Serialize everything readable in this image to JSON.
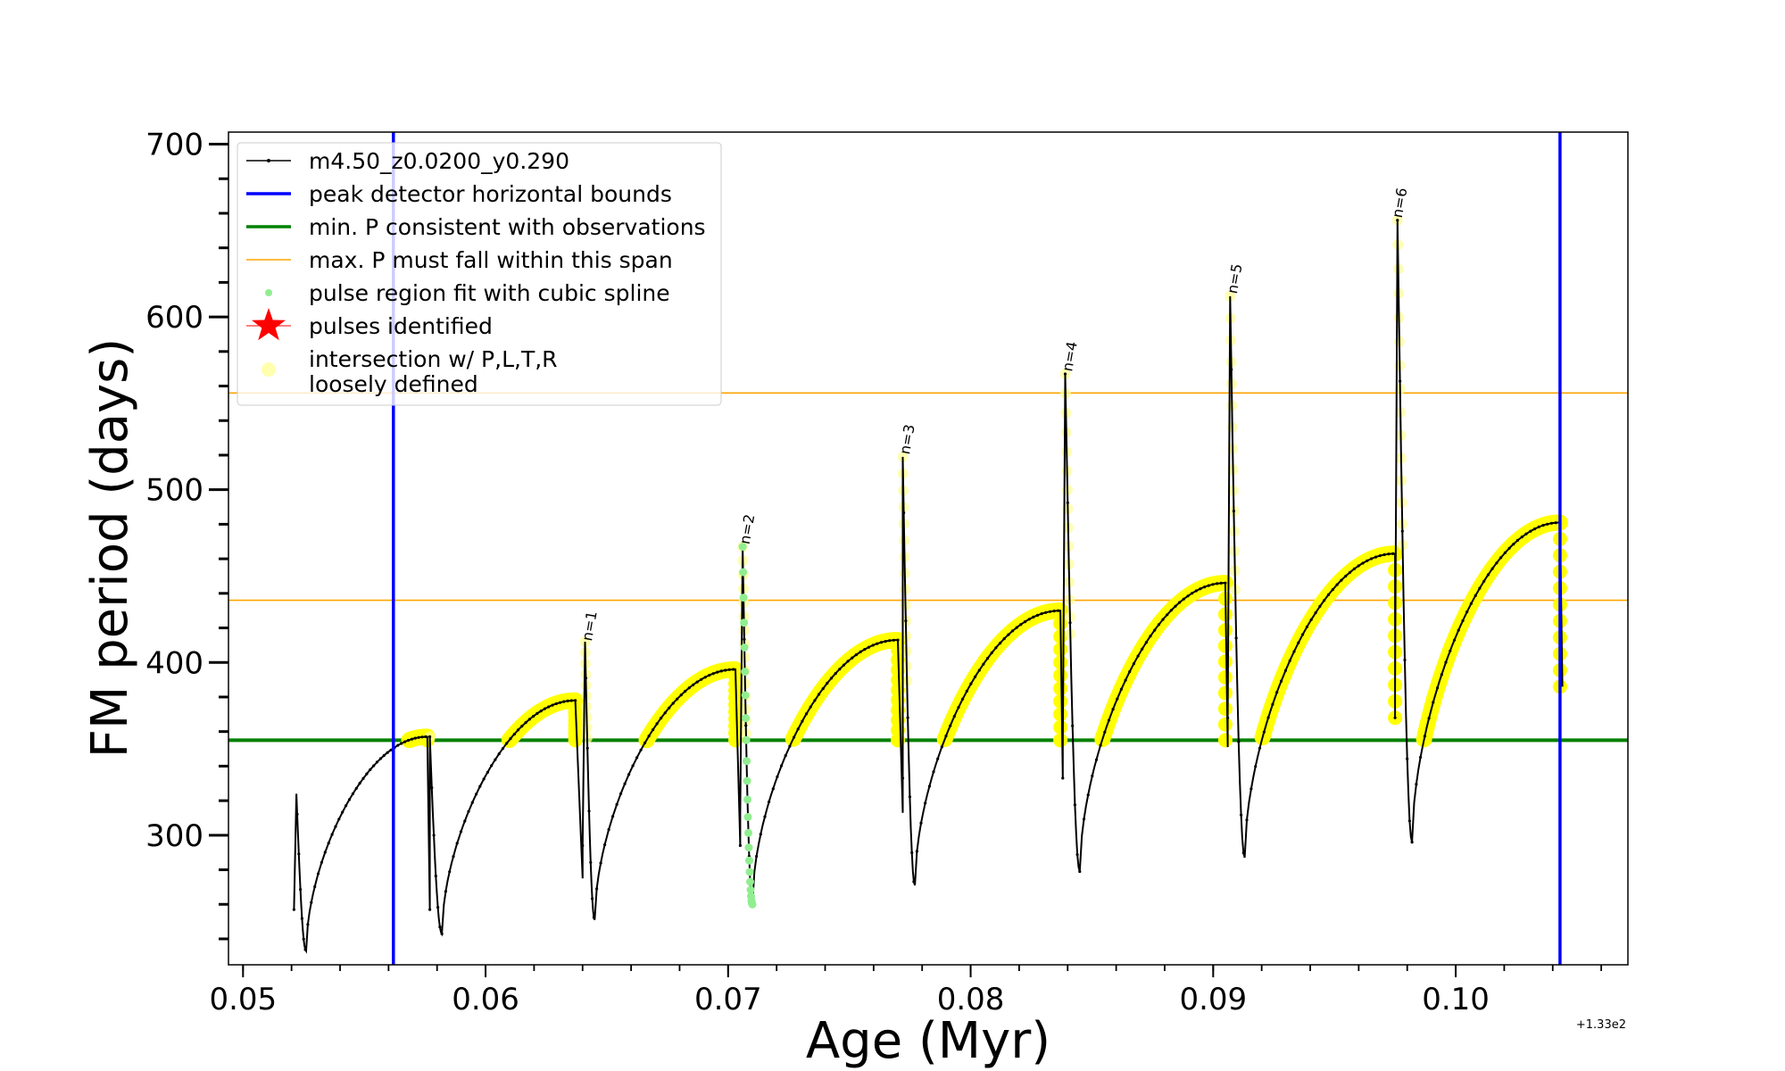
{
  "chart_data": {
    "type": "line",
    "xlabel": "Age (Myr)",
    "ylabel": "FM period (days)",
    "x_offset_label": "+1.33e2",
    "xlim": [
      0.0494,
      0.1071
    ],
    "ylim": [
      225,
      707
    ],
    "x_ticks": [
      0.05,
      0.06,
      0.07,
      0.08,
      0.09,
      0.1
    ],
    "x_tick_labels": [
      "0.05",
      "0.06",
      "0.07",
      "0.08",
      "0.09",
      "0.10"
    ],
    "x_minor_step": 0.002,
    "y_ticks": [
      300,
      400,
      500,
      600,
      700
    ],
    "y_tick_labels": [
      "300",
      "400",
      "500",
      "600",
      "700"
    ],
    "y_minor_step": 20,
    "colors": {
      "track": "#000000",
      "bounds": "#0000ff",
      "min_period": "#008000",
      "max_span": "#ffa500",
      "spline": "#90ee90",
      "pulses": "#ff0000",
      "intersection": "#ffff00"
    },
    "legend": {
      "placement": "upper-left",
      "entries": [
        {
          "label": "m4.50_z0.0200_y0.290",
          "style": "line-marker",
          "color": "#000000"
        },
        {
          "label": "peak detector horizontal bounds",
          "style": "line",
          "color": "#0000ff"
        },
        {
          "label": "min. P consistent with observations",
          "style": "line",
          "color": "#008000"
        },
        {
          "label": "max. P must fall within this span",
          "style": "thin-line",
          "color": "#ffa500"
        },
        {
          "label": "pulse region fit with cubic spline",
          "style": "dot",
          "color": "#90ee90"
        },
        {
          "label": "pulses identified",
          "style": "star",
          "color": "#ff0000"
        },
        {
          "label": "intersection w/ P,L,T,R",
          "label2": "loosely defined",
          "style": "circle",
          "color": "#ffff99"
        }
      ]
    },
    "vertical_bounds": [
      0.0562,
      0.1043
    ],
    "min_period": 355,
    "max_period_span": [
      436,
      556
    ],
    "track_segments": [
      {
        "t0": 0.0521,
        "t_peak": 0.0522,
        "peak": 324,
        "t_dip": 0.0526,
        "dip": 233,
        "t_end": 0.0576,
        "end": 357,
        "t_drop": 0.0577,
        "drop": 257
      },
      {
        "t0": 0.0577,
        "t_peak": 0.0577,
        "peak": 357,
        "t_dip": 0.0582,
        "dip": 243,
        "t_end": 0.0637,
        "end": 378,
        "t_drop": 0.064,
        "drop": 275
      },
      {
        "t0": 0.064,
        "t_peak": 0.0641,
        "peak": 412,
        "t_dip": 0.0645,
        "dip": 251,
        "t_end": 0.0703,
        "end": 396,
        "t_drop": 0.0705,
        "drop": 294
      },
      {
        "t0": 0.0705,
        "t_peak": 0.0706,
        "peak": 467,
        "t_dip": 0.071,
        "dip": 260,
        "t_end": 0.077,
        "end": 413,
        "t_drop": 0.0772,
        "drop": 313
      },
      {
        "t0": 0.0772,
        "t_peak": 0.0772,
        "peak": 519,
        "t_dip": 0.0777,
        "dip": 271,
        "t_end": 0.0837,
        "end": 430,
        "t_drop": 0.0838,
        "drop": 333
      },
      {
        "t0": 0.0838,
        "t_peak": 0.0839,
        "peak": 567,
        "t_dip": 0.0845,
        "dip": 279,
        "t_end": 0.0905,
        "end": 446,
        "t_drop": 0.0906,
        "drop": 351
      },
      {
        "t0": 0.0906,
        "t_peak": 0.0907,
        "peak": 612,
        "t_dip": 0.0913,
        "dip": 287,
        "t_end": 0.0975,
        "end": 463,
        "t_drop": 0.0975,
        "drop": 368
      },
      {
        "t0": 0.0975,
        "t_peak": 0.0976,
        "peak": 656,
        "t_dip": 0.0982,
        "dip": 296,
        "t_end": 0.1043,
        "end": 481,
        "t_drop": 0.1044,
        "drop": 386
      }
    ],
    "pulse_labels": [
      {
        "text": "n=1",
        "x": 0.0643,
        "y": 410
      },
      {
        "text": "n=2",
        "x": 0.0708,
        "y": 466
      },
      {
        "text": "n=3",
        "x": 0.0774,
        "y": 518
      },
      {
        "text": "n=4",
        "x": 0.0841,
        "y": 566
      },
      {
        "text": "n=5",
        "x": 0.0909,
        "y": 611
      },
      {
        "text": "n=6",
        "x": 0.0977,
        "y": 655
      }
    ],
    "spline_pulse_index": 3
  }
}
